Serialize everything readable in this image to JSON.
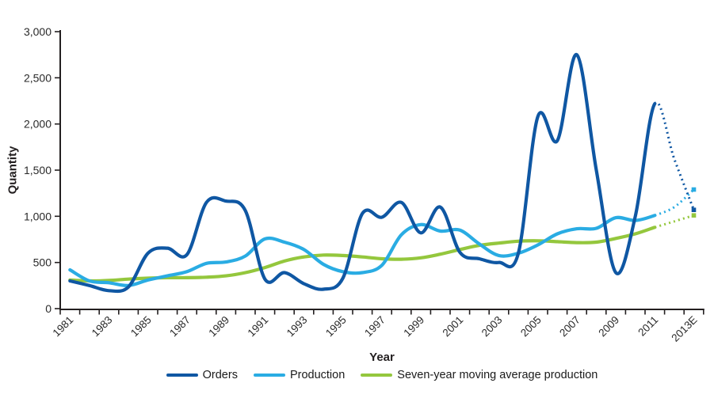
{
  "axes": {
    "y_label": "Quantity",
    "x_label": "Year",
    "y_tick_values": [
      0,
      500,
      1000,
      1500,
      2000,
      2500,
      3000
    ],
    "y_tick_labels": [
      "0",
      "500",
      "1,000",
      "1,500",
      "2,000",
      "2,500",
      "3,000"
    ],
    "x_tick_labels": [
      "1981",
      "1983",
      "1985",
      "1987",
      "1989",
      "1991",
      "1993",
      "1995",
      "1997",
      "1999",
      "2001",
      "2003",
      "2005",
      "2007",
      "2009",
      "2011",
      "2013E"
    ]
  },
  "legend": [
    {
      "label": "Orders",
      "color": "#0f57a3"
    },
    {
      "label": "Production",
      "color": "#2aace3"
    },
    {
      "label": "Seven-year moving average production",
      "color": "#94c73d"
    }
  ],
  "colors": {
    "axis": "#231f20",
    "tick_text": "#2a2a2a",
    "orders": "#0f57a3",
    "production": "#2aace3",
    "moving_average": "#94c73d"
  },
  "chart_data": {
    "type": "line",
    "title": "",
    "xlabel": "Year",
    "ylabel": "Quantity",
    "ylim": [
      0,
      3000
    ],
    "grid": false,
    "legend_position": "bottom",
    "x": [
      "1981",
      "1982",
      "1983",
      "1984",
      "1985",
      "1986",
      "1987",
      "1988",
      "1989",
      "1990",
      "1991",
      "1992",
      "1993",
      "1994",
      "1995",
      "1996",
      "1997",
      "1998",
      "1999",
      "2000",
      "2001",
      "2002",
      "2003",
      "2004",
      "2005",
      "2006",
      "2007",
      "2008",
      "2009",
      "2010",
      "2011",
      "2012",
      "2013E"
    ],
    "solid_points": 31,
    "series": [
      {
        "name": "Orders",
        "color": "#0f57a3",
        "values": [
          300,
          250,
          195,
          235,
          600,
          655,
          585,
          1150,
          1165,
          1060,
          320,
          390,
          270,
          210,
          330,
          1030,
          990,
          1150,
          820,
          1100,
          610,
          540,
          500,
          600,
          2080,
          1820,
          2750,
          1500,
          390,
          1000,
          2220,
          1620,
          1070
        ]
      },
      {
        "name": "Production",
        "color": "#2aace3",
        "values": [
          420,
          300,
          280,
          250,
          310,
          355,
          400,
          490,
          505,
          570,
          755,
          720,
          640,
          480,
          400,
          390,
          470,
          800,
          910,
          840,
          850,
          700,
          575,
          600,
          690,
          810,
          865,
          870,
          985,
          955,
          1010,
          1100,
          1290
        ]
      },
      {
        "name": "Seven-year moving average production",
        "color": "#94c73d",
        "values": [
          310,
          300,
          305,
          320,
          330,
          335,
          335,
          340,
          355,
          390,
          445,
          515,
          560,
          580,
          575,
          560,
          540,
          535,
          550,
          590,
          640,
          685,
          710,
          730,
          735,
          725,
          715,
          720,
          760,
          810,
          880,
          945,
          1010
        ]
      }
    ]
  }
}
